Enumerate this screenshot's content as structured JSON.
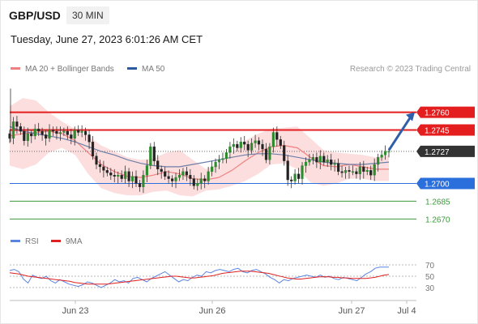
{
  "header": {
    "symbol": "GBP/USD",
    "timeframe": "30 MIN",
    "datetime": "Tuesday, June 27, 2023 6:01:26 AM CET"
  },
  "main_legend": [
    {
      "label": "MA 20 + Bollinger Bands",
      "color": "#f08080"
    },
    {
      "label": "MA 50",
      "color": "#2c5aa0"
    }
  ],
  "credit": "Research © 2023 Trading Central",
  "rsi_legend": [
    {
      "label": "RSI",
      "color": "#5b84e0"
    },
    {
      "label": "9MA",
      "color": "#e02020"
    }
  ],
  "chart_data": [
    {
      "type": "candlestick",
      "title": "",
      "y_range": [
        1.266,
        1.2785
      ],
      "x_ticks": [
        "Jun 23",
        "Jun 26",
        "Jun 27",
        "Jul 4"
      ],
      "close_series": [
        1.2738,
        1.2752,
        1.2748,
        1.2744,
        1.2736,
        1.2742,
        1.274,
        1.2746,
        1.2744,
        1.2741,
        1.2738,
        1.2745,
        1.2744,
        1.2742,
        1.2743,
        1.2744,
        1.2741,
        1.2738,
        1.2745,
        1.2743,
        1.2744,
        1.2741,
        1.2735,
        1.2723,
        1.2716,
        1.2714,
        1.2711,
        1.2709,
        1.2707,
        1.2706,
        1.2707,
        1.2704,
        1.271,
        1.2702,
        1.2706,
        1.27,
        1.2697,
        1.2707,
        1.2715,
        1.2731,
        1.2719,
        1.2712,
        1.271,
        1.2706,
        1.2704,
        1.2702,
        1.2705,
        1.2707,
        1.271,
        1.2707,
        1.2704,
        1.2698,
        1.27,
        1.2704,
        1.2702,
        1.271,
        1.2714,
        1.2718,
        1.272,
        1.2721,
        1.2726,
        1.2731,
        1.2733,
        1.273,
        1.2735,
        1.2733,
        1.2728,
        1.2734,
        1.2736,
        1.2733,
        1.2729,
        1.272,
        1.2731,
        1.2743,
        1.2737,
        1.2732,
        1.2719,
        1.2703,
        1.2702,
        1.2708,
        1.2704,
        1.2715,
        1.2718,
        1.272,
        1.2722,
        1.2718,
        1.2723,
        1.2718,
        1.272,
        1.2716,
        1.2717,
        1.271,
        1.2709,
        1.2711,
        1.271,
        1.271,
        1.2708,
        1.2714,
        1.271,
        1.2711,
        1.2707,
        1.2716,
        1.2722,
        1.2724,
        1.2727,
        1.2727
      ],
      "ma50": [
        1.2748,
        1.2744,
        1.2742,
        1.274,
        1.2738,
        1.2735,
        1.2731,
        1.2727,
        1.2724,
        1.272,
        1.2717,
        1.2715,
        1.2714,
        1.2714,
        1.2716,
        1.2718,
        1.272,
        1.2722,
        1.2724,
        1.2725,
        1.2725,
        1.2724,
        1.2722,
        1.272,
        1.2718,
        1.2717,
        1.2716,
        1.2716,
        1.2717,
        1.2718
      ],
      "ma20": [
        1.274,
        1.2742,
        1.2743,
        1.2744,
        1.2742,
        1.2736,
        1.2726,
        1.2716,
        1.271,
        1.2706,
        1.2705,
        1.2707,
        1.271,
        1.2708,
        1.2704,
        1.2703,
        1.2705,
        1.2711,
        1.2719,
        1.2726,
        1.2731,
        1.2732,
        1.273,
        1.2722,
        1.2715,
        1.2714,
        1.2716,
        1.2714,
        1.2712,
        1.2712
      ],
      "bb_upper": [
        1.2765,
        1.2772,
        1.277,
        1.276,
        1.2752,
        1.2746,
        1.274,
        1.2732,
        1.2727,
        1.2722,
        1.272,
        1.2721,
        1.2726,
        1.2728,
        1.272,
        1.2712,
        1.2716,
        1.2726,
        1.2736,
        1.2742,
        1.2746,
        1.2747,
        1.2748,
        1.2738,
        1.2728,
        1.2726,
        1.2725,
        1.2724,
        1.2722,
        1.2724
      ],
      "bb_lower": [
        1.2715,
        1.2712,
        1.2716,
        1.2726,
        1.273,
        1.2724,
        1.2708,
        1.2696,
        1.2692,
        1.269,
        1.269,
        1.2693,
        1.2694,
        1.269,
        1.2689,
        1.2694,
        1.2695,
        1.2698,
        1.2702,
        1.2708,
        1.2716,
        1.2717,
        1.2712,
        1.2701,
        1.2698,
        1.27,
        1.2704,
        1.2704,
        1.2702,
        1.2702
      ],
      "levels": [
        {
          "value": 1.276,
          "label": "1.2760",
          "kind": "resistance",
          "color": "#e41e1e"
        },
        {
          "value": 1.2745,
          "label": "1.2745",
          "kind": "resistance",
          "color": "#e41e1e"
        },
        {
          "value": 1.2727,
          "label": "1.2727",
          "kind": "last",
          "color": "#333333"
        },
        {
          "value": 1.27,
          "label": "1.2700",
          "kind": "pivot",
          "color": "#2a6fdb"
        },
        {
          "value": 1.2685,
          "label": "1.2685",
          "kind": "support",
          "color": "#3a9a3a"
        },
        {
          "value": 1.267,
          "label": "1.2670",
          "kind": "support",
          "color": "#3a9a3a"
        }
      ],
      "forecast_arrow": {
        "from": 1.2728,
        "to": 1.276
      }
    },
    {
      "type": "line",
      "title": "",
      "y_range": [
        20,
        80
      ],
      "y_ticks": [
        70,
        50,
        30
      ],
      "series": [
        {
          "name": "RSI",
          "values": [
            60,
            62,
            58,
            45,
            38,
            52,
            48,
            46,
            50,
            42,
            38,
            44,
            40,
            36,
            34,
            32,
            35,
            40,
            38,
            34,
            30,
            34,
            38,
            44,
            40,
            42,
            38,
            46,
            48,
            44,
            40,
            46,
            50,
            54,
            58,
            52,
            46,
            40,
            44,
            42,
            48,
            52,
            50,
            58,
            56,
            60,
            62,
            60,
            58,
            62,
            64,
            58,
            56,
            60,
            62,
            58,
            54,
            48,
            44,
            38,
            44,
            42,
            46,
            48,
            50,
            52,
            50,
            48,
            52,
            48,
            50,
            46,
            44,
            48,
            46,
            44,
            42,
            48,
            54,
            58,
            64,
            66,
            66,
            66
          ]
        },
        {
          "name": "9MA",
          "values": [
            56,
            55,
            54,
            52,
            50,
            49,
            48,
            47,
            46,
            45,
            44,
            43,
            42,
            41,
            39,
            38,
            37,
            36,
            36,
            36,
            36,
            36,
            37,
            38,
            39,
            40,
            41,
            42,
            43,
            44,
            45,
            46,
            47,
            48,
            49,
            50,
            50,
            49,
            48,
            47,
            47,
            48,
            49,
            50,
            51,
            53,
            55,
            56,
            57,
            58,
            59,
            59,
            59,
            58,
            57,
            56,
            55,
            53,
            51,
            49,
            47,
            46,
            45,
            45,
            46,
            47,
            48,
            49,
            49,
            49,
            48,
            48,
            47,
            47,
            46,
            46,
            46,
            46,
            47,
            48,
            50,
            52,
            53
          ]
        }
      ]
    }
  ]
}
